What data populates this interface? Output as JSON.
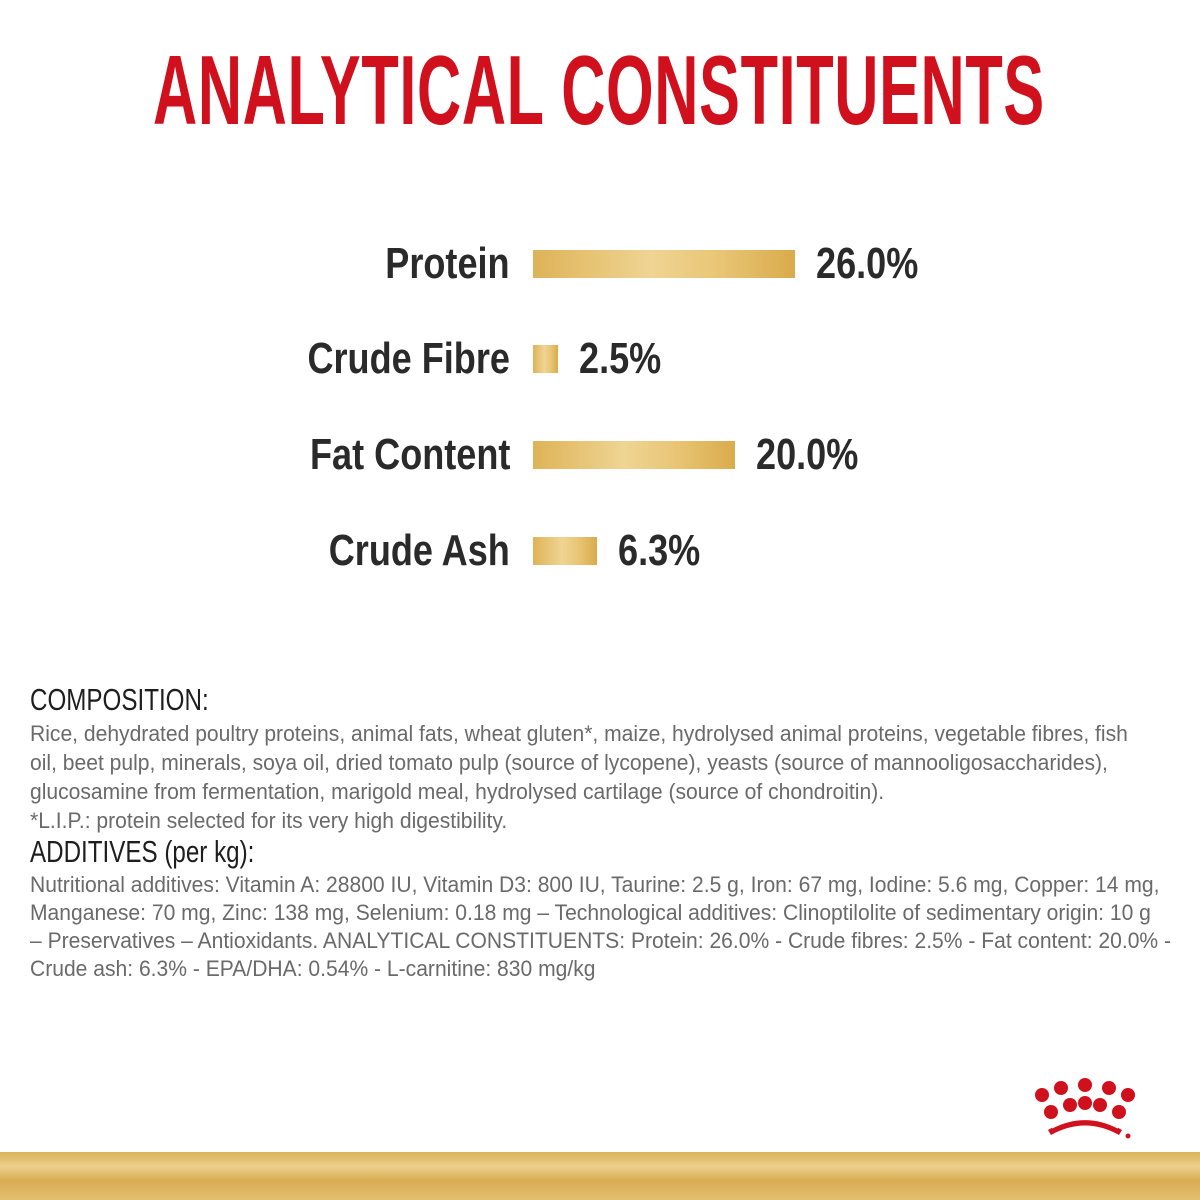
{
  "title": "ANALYTICAL CONSTITUENTS",
  "chart_data": {
    "type": "bar",
    "orientation": "horizontal",
    "title": "ANALYTICAL CONSTITUENTS",
    "categories": [
      "Protein",
      "Crude Fibre",
      "Fat Content",
      "Crude Ash"
    ],
    "values": [
      26.0,
      2.5,
      20.0,
      6.3
    ],
    "value_labels": [
      "26.0%",
      "2.5%",
      "20.0%",
      "6.3%"
    ],
    "unit": "%",
    "bar_color": "#e3bd68",
    "grid": false
  },
  "composition": {
    "heading": "COMPOSITION:",
    "lines": [
      "Rice, dehydrated poultry proteins, animal fats, wheat gluten*, maize, hydrolysed animal proteins, vegetable fibres, fish",
      "oil, beet pulp, minerals, soya oil, dried tomato pulp (source of lycopene), yeasts (source of mannooligosaccharides),",
      "glucosamine from fermentation, marigold meal, hydrolysed cartilage (source of chondroitin).",
      "*L.I.P.: protein selected for its very high digestibility."
    ]
  },
  "additives": {
    "heading": "ADDITIVES (per kg):",
    "lines": [
      "Nutritional additives: Vitamin A: 28800 IU, Vitamin D3: 800 IU, Taurine: 2.5 g, Iron: 67 mg, Iodine: 5.6 mg, Copper: 14 mg,",
      "Manganese: 70 mg, Zinc: 138 mg, Selenium: 0.18 mg – Technological additives: Clinoptilolite of sedimentary origin: 10 g",
      "– Preservatives – Antioxidants. ANALYTICAL CONSTITUENTS: Protein: 26.0% - Crude fibres: 2.5% - Fat content: 20.0% -",
      "Crude ash: 6.3% - EPA/DHA: 0.54% - L-carnitine: 830 mg/kg"
    ]
  },
  "colors": {
    "title": "#d0101c",
    "bar": "#e3bd68",
    "logo": "#d0101c",
    "band": "#dbb358"
  },
  "logo": {
    "icon": "crown-logo-icon"
  }
}
